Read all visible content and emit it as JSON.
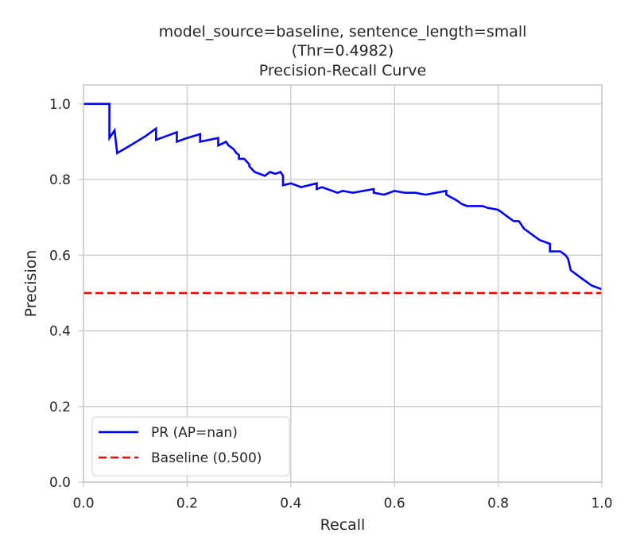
{
  "chart_data": {
    "type": "line",
    "title_lines": [
      "model_source=baseline, sentence_length=small",
      "(Thr=0.4982)",
      "Precision-Recall Curve"
    ],
    "xlabel": "Recall",
    "ylabel": "Precision",
    "xlim": [
      0.0,
      1.0
    ],
    "ylim": [
      0.0,
      1.05
    ],
    "xticks": [
      "0.0",
      "0.2",
      "0.4",
      "0.6",
      "0.8",
      "1.0"
    ],
    "yticks": [
      "0.0",
      "0.2",
      "0.4",
      "0.6",
      "0.8",
      "1.0"
    ],
    "grid": true,
    "legend_position": "lower-left",
    "legend": [
      {
        "label": "PR (AP=nan)",
        "color": "#0000ff",
        "style": "solid"
      },
      {
        "label": "Baseline (0.500)",
        "color": "#ff0000",
        "style": "dashed"
      }
    ],
    "series": [
      {
        "name": "PR (AP=nan)",
        "color": "#0000ff",
        "style": "solid",
        "x": [
          0.0,
          0.05,
          0.05,
          0.06,
          0.065,
          0.09,
          0.12,
          0.14,
          0.14,
          0.16,
          0.18,
          0.18,
          0.2,
          0.225,
          0.225,
          0.26,
          0.26,
          0.275,
          0.28,
          0.29,
          0.295,
          0.3,
          0.3,
          0.31,
          0.32,
          0.32,
          0.33,
          0.35,
          0.36,
          0.37,
          0.38,
          0.385,
          0.385,
          0.4,
          0.42,
          0.45,
          0.45,
          0.46,
          0.48,
          0.49,
          0.5,
          0.52,
          0.56,
          0.56,
          0.58,
          0.6,
          0.62,
          0.64,
          0.66,
          0.7,
          0.7,
          0.72,
          0.73,
          0.74,
          0.76,
          0.77,
          0.78,
          0.8,
          0.82,
          0.83,
          0.84,
          0.85,
          0.86,
          0.87,
          0.88,
          0.9,
          0.9,
          0.92,
          0.93,
          0.935,
          0.94,
          0.95,
          0.96,
          0.97,
          0.98,
          0.99,
          1.0
        ],
        "y": [
          1.0,
          1.0,
          0.91,
          0.93,
          0.87,
          0.89,
          0.915,
          0.935,
          0.905,
          0.915,
          0.925,
          0.9,
          0.91,
          0.92,
          0.9,
          0.91,
          0.89,
          0.9,
          0.89,
          0.88,
          0.87,
          0.865,
          0.855,
          0.855,
          0.84,
          0.835,
          0.82,
          0.81,
          0.82,
          0.815,
          0.82,
          0.81,
          0.785,
          0.79,
          0.78,
          0.79,
          0.775,
          0.78,
          0.77,
          0.765,
          0.77,
          0.765,
          0.775,
          0.765,
          0.76,
          0.77,
          0.765,
          0.765,
          0.76,
          0.77,
          0.76,
          0.745,
          0.735,
          0.73,
          0.73,
          0.73,
          0.725,
          0.72,
          0.7,
          0.69,
          0.69,
          0.67,
          0.66,
          0.65,
          0.64,
          0.63,
          0.61,
          0.61,
          0.6,
          0.59,
          0.56,
          0.55,
          0.54,
          0.53,
          0.52,
          0.515,
          0.51
        ]
      },
      {
        "name": "Baseline (0.500)",
        "color": "#ff0000",
        "style": "dashed",
        "x": [
          0.0,
          1.0
        ],
        "y": [
          0.5,
          0.5
        ]
      }
    ]
  }
}
